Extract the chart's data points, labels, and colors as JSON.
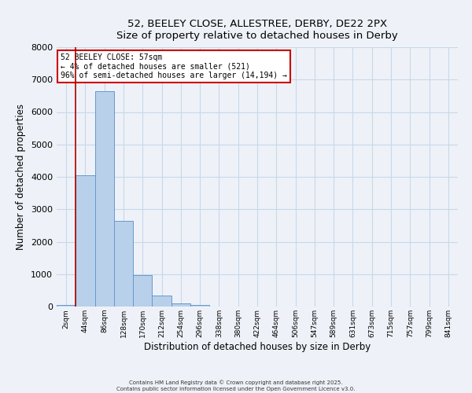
{
  "title_line1": "52, BEELEY CLOSE, ALLESTREE, DERBY, DE22 2PX",
  "title_line2": "Size of property relative to detached houses in Derby",
  "xlabel": "Distribution of detached houses by size in Derby",
  "ylabel": "Number of detached properties",
  "categories": [
    "2sqm",
    "44sqm",
    "86sqm",
    "128sqm",
    "170sqm",
    "212sqm",
    "254sqm",
    "296sqm",
    "338sqm",
    "380sqm",
    "422sqm",
    "464sqm",
    "506sqm",
    "547sqm",
    "589sqm",
    "631sqm",
    "673sqm",
    "715sqm",
    "757sqm",
    "799sqm",
    "841sqm"
  ],
  "bar_heights": [
    50,
    4050,
    6650,
    2650,
    975,
    330,
    100,
    50,
    0,
    0,
    0,
    0,
    0,
    0,
    0,
    0,
    0,
    0,
    0,
    0,
    0
  ],
  "bar_color": "#b8d0ea",
  "bar_edge_color": "#6699cc",
  "grid_color": "#c8d8e8",
  "background_color": "#eef2f8",
  "vline_color": "#aa0000",
  "annotation_title": "52 BEELEY CLOSE: 57sqm",
  "annotation_line1": "← 4% of detached houses are smaller (521)",
  "annotation_line2": "96% of semi-detached houses are larger (14,194) →",
  "annotation_box_facecolor": "#ffffff",
  "annotation_box_edgecolor": "#cc0000",
  "ylim": [
    0,
    8000
  ],
  "yticks": [
    0,
    1000,
    2000,
    3000,
    4000,
    5000,
    6000,
    7000,
    8000
  ],
  "footer_line1": "Contains HM Land Registry data © Crown copyright and database right 2025.",
  "footer_line2": "Contains public sector information licensed under the Open Government Licence v3.0."
}
